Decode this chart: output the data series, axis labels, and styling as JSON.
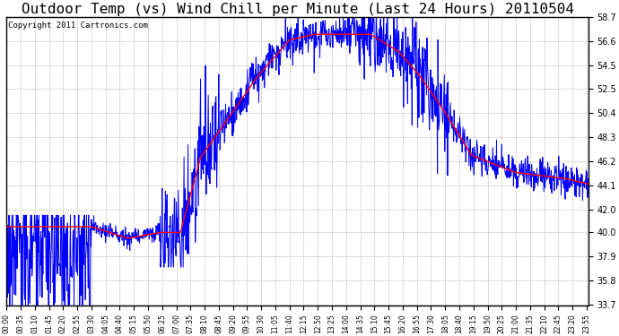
{
  "title": "Outdoor Temp (vs) Wind Chill per Minute (Last 24 Hours) 20110504",
  "copyright": "Copyright 2011 Cartronics.com",
  "yticks": [
    33.7,
    35.8,
    37.9,
    40.0,
    42.0,
    44.1,
    46.2,
    48.3,
    50.4,
    52.5,
    54.5,
    56.6,
    58.7
  ],
  "ymin": 33.7,
  "ymax": 58.7,
  "background_color": "#ffffff",
  "grid_color": "#aaaaaa",
  "red_color": "#ff0000",
  "blue_color": "#0000ff",
  "title_fontsize": 11.5,
  "copyright_fontsize": 6.5,
  "linewidth_red": 1.0,
  "linewidth_blue": 0.7
}
